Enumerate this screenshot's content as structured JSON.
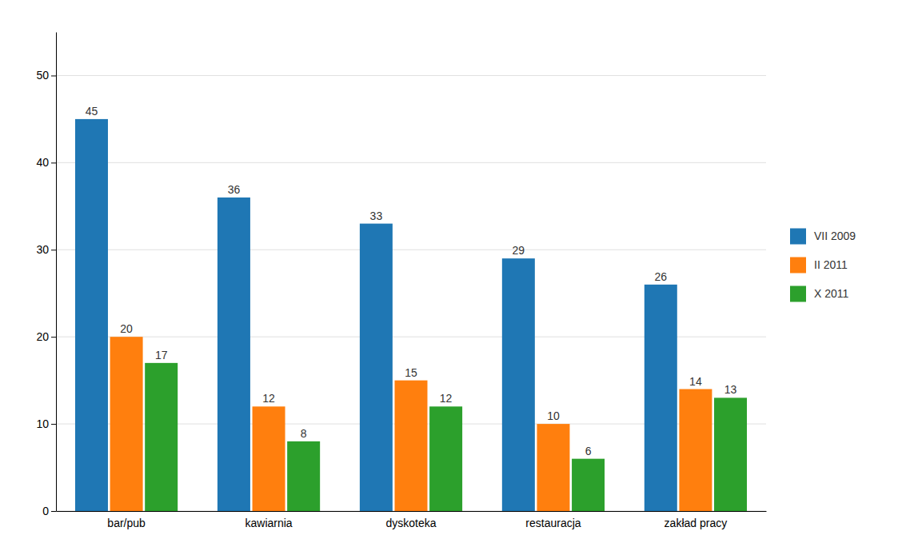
{
  "chart_data": {
    "type": "bar",
    "categories": [
      "bar/pub",
      "kawiarnia",
      "dyskoteka",
      "restauracja",
      "zakład pracy"
    ],
    "series": [
      {
        "name": "VII 2009",
        "values": [
          45,
          36,
          33,
          29,
          26
        ]
      },
      {
        "name": "II 2011",
        "values": [
          20,
          12,
          15,
          10,
          14
        ]
      },
      {
        "name": "X 2011",
        "values": [
          17,
          8,
          12,
          6,
          13
        ]
      }
    ],
    "ylim": [
      0,
      55
    ],
    "yticks": [
      0,
      10,
      20,
      30,
      40,
      50
    ],
    "grid": true,
    "legend": "right",
    "data_labels": true
  }
}
